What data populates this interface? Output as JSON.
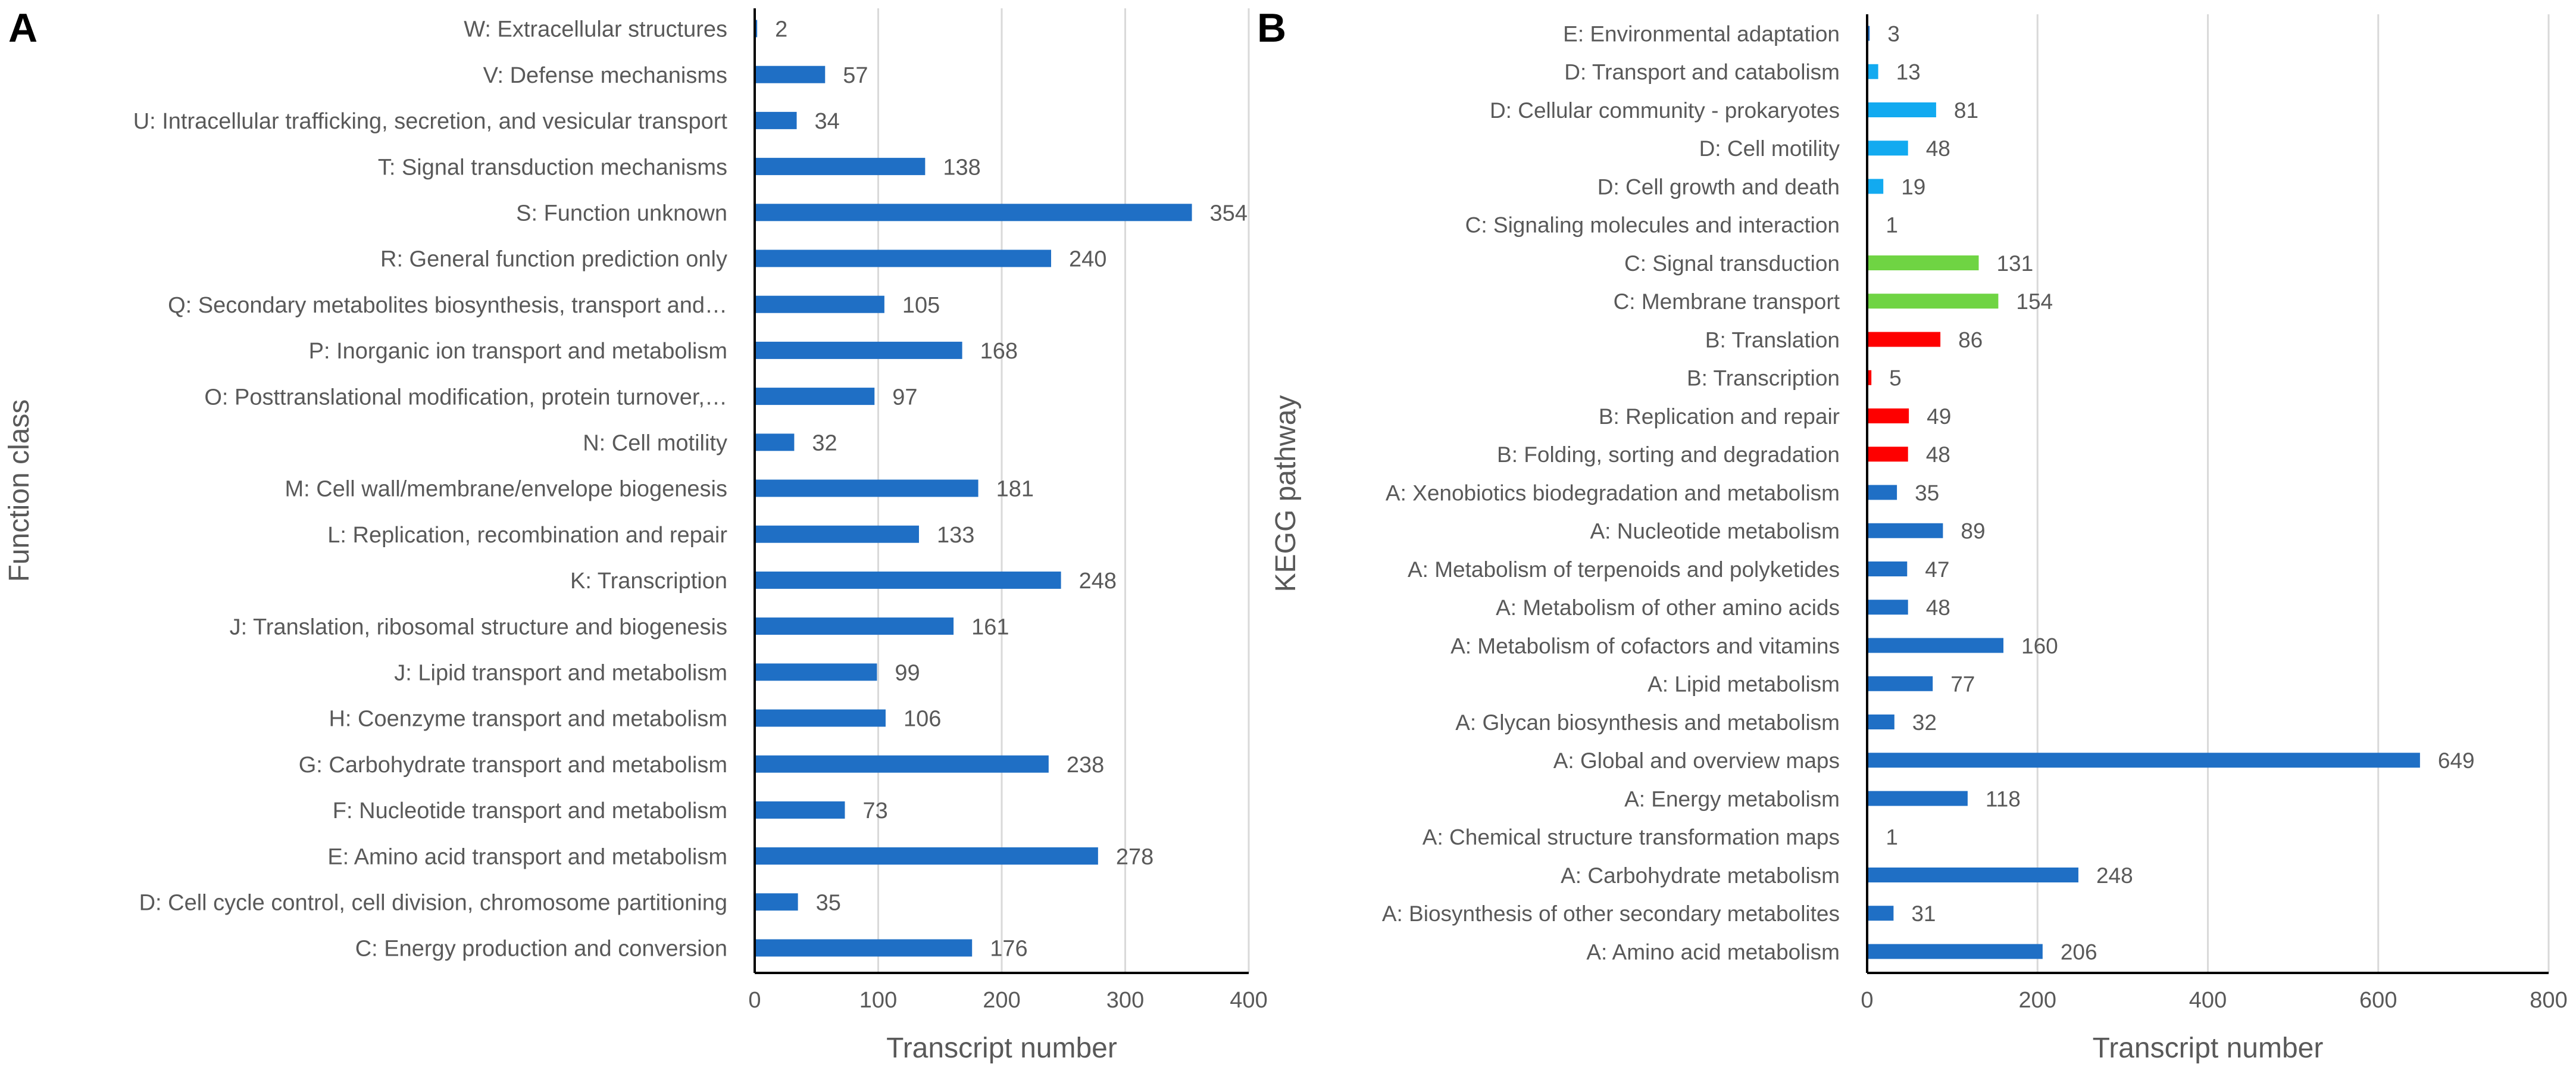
{
  "chart_data": [
    {
      "panel": "A",
      "type": "bar",
      "orientation": "horizontal",
      "xlabel": "Transcript number",
      "ylabel": "Function class",
      "xlim": [
        0,
        400
      ],
      "xticks": [
        0,
        100,
        200,
        300,
        400
      ],
      "grid": true,
      "categories": [
        "W: Extracellular structures",
        "V: Defense mechanisms",
        "U: Intracellular trafficking, secretion, and vesicular transport",
        "T: Signal transduction mechanisms",
        "S: Function unknown",
        "R: General function prediction only",
        "Q: Secondary metabolites biosynthesis, transport and…",
        "P: Inorganic ion transport and metabolism",
        "O: Posttranslational modification, protein turnover,…",
        "N: Cell motility",
        "M: Cell wall/membrane/envelope biogenesis",
        "L: Replication, recombination and repair",
        "K: Transcription",
        "J: Translation, ribosomal structure and biogenesis",
        "J: Lipid transport and metabolism",
        "H: Coenzyme transport and metabolism",
        "G: Carbohydrate transport and metabolism",
        "F: Nucleotide transport and metabolism",
        "E: Amino acid transport and metabolism",
        "D: Cell cycle control, cell division, chromosome partitioning",
        "C: Energy production and conversion"
      ],
      "values": [
        2,
        57,
        34,
        138,
        354,
        240,
        105,
        168,
        97,
        32,
        181,
        133,
        248,
        161,
        99,
        106,
        238,
        73,
        278,
        35,
        176
      ],
      "colors": [
        "#1f6fc5"
      ]
    },
    {
      "panel": "B",
      "type": "bar",
      "orientation": "horizontal",
      "xlabel": "Transcript number",
      "ylabel": "KEGG pathway",
      "xlim": [
        0,
        800
      ],
      "xticks": [
        0,
        200,
        400,
        600,
        800
      ],
      "grid": true,
      "categories": [
        "E: Environmental adaptation",
        "D: Transport and catabolism",
        "D: Cellular community - prokaryotes",
        "D: Cell motility",
        "D: Cell growth and death",
        "C: Signaling molecules and interaction",
        "C: Signal transduction",
        "C: Membrane transport",
        "B: Translation",
        "B: Transcription",
        "B: Replication and repair",
        "B: Folding, sorting and degradation",
        "A: Xenobiotics biodegradation and metabolism",
        "A: Nucleotide metabolism",
        "A: Metabolism of terpenoids and polyketides",
        "A: Metabolism of other amino acids",
        "A: Metabolism of cofactors and vitamins",
        "A: Lipid metabolism",
        "A: Glycan biosynthesis and metabolism",
        "A: Global and overview maps",
        "A: Energy metabolism",
        "A: Chemical structure transformation maps",
        "A: Carbohydrate metabolism",
        "A: Biosynthesis of other secondary metabolites",
        "A: Amino acid metabolism"
      ],
      "values": [
        3,
        13,
        81,
        48,
        19,
        1,
        131,
        154,
        86,
        5,
        49,
        48,
        35,
        89,
        47,
        48,
        160,
        77,
        32,
        649,
        118,
        1,
        248,
        31,
        206
      ],
      "colors": [
        "#1f6fc5",
        "#12aaf0",
        "#12aaf0",
        "#12aaf0",
        "#12aaf0",
        "#6fd443",
        "#6fd443",
        "#6fd443",
        "#fe0000",
        "#fe0000",
        "#fe0000",
        "#fe0000",
        "#1f6fc5",
        "#1f6fc5",
        "#1f6fc5",
        "#1f6fc5",
        "#1f6fc5",
        "#1f6fc5",
        "#1f6fc5",
        "#1f6fc5",
        "#1f6fc5",
        "#1f6fc5",
        "#1f6fc5",
        "#1f6fc5",
        "#1f6fc5"
      ]
    }
  ],
  "colors": {
    "group_A": "#1f6fc5",
    "group_B": "#fe0000",
    "group_C": "#6fd443",
    "group_D": "#12aaf0",
    "group_E": "#1f6fc5",
    "grid": "#d9d9d9",
    "axis": "#000000",
    "text": "#595959"
  }
}
